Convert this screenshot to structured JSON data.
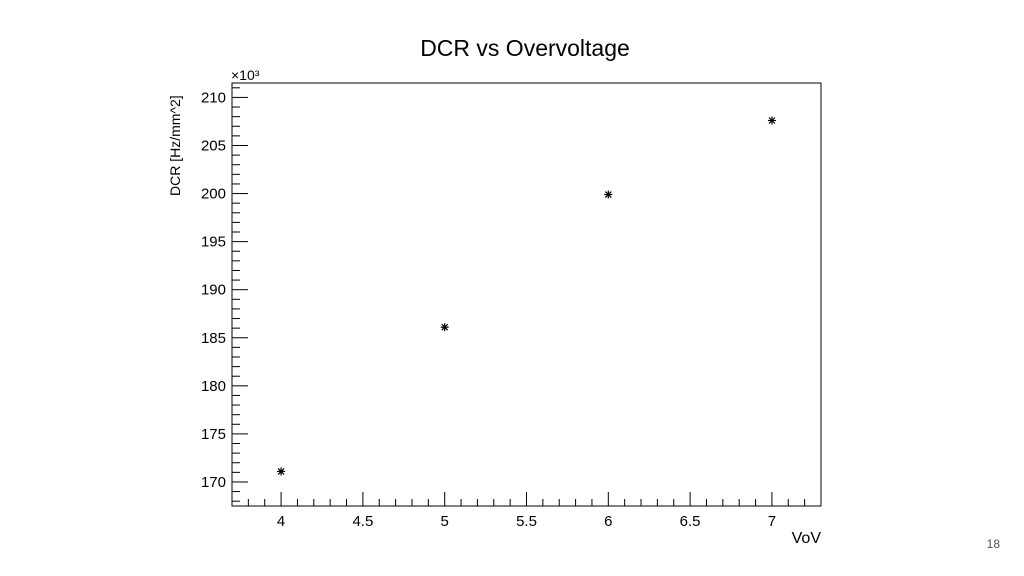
{
  "slide": {
    "page_number": "18"
  },
  "chart_data": {
    "type": "scatter",
    "title": "DCR vs Overvoltage",
    "xlabel": "VoV",
    "ylabel": "DCR [Hz/mm^2]",
    "y_multiplier_label": "×10³",
    "xlim": [
      3.7,
      7.3
    ],
    "ylim": [
      167.5,
      211.5
    ],
    "x_ticks": [
      4,
      4.5,
      5,
      5.5,
      6,
      6.5,
      7
    ],
    "x_tick_labels": [
      "4",
      "4.5",
      "5",
      "5.5",
      "6",
      "6.5",
      "7"
    ],
    "y_ticks": [
      170,
      175,
      180,
      185,
      190,
      195,
      200,
      205,
      210
    ],
    "y_tick_labels": [
      "170",
      "175",
      "180",
      "185",
      "190",
      "195",
      "200",
      "205",
      "210"
    ],
    "grid": false,
    "marker": "asterisk",
    "x": [
      4,
      5,
      6,
      7
    ],
    "y": [
      171.1,
      186.1,
      199.9,
      207.6
    ],
    "colors": {
      "marker": "#000000",
      "axis": "#000000"
    }
  }
}
